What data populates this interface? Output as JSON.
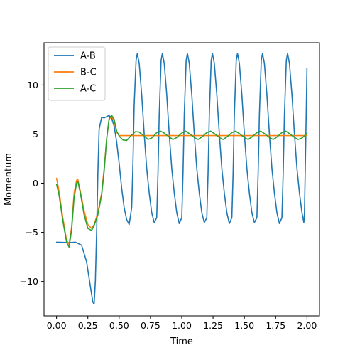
{
  "chart_data": {
    "type": "line",
    "xlabel": "Time",
    "ylabel": "Momentum",
    "xlim": [
      -0.1,
      2.1
    ],
    "ylim": [
      -13.5,
      14.3
    ],
    "xticks": [
      0.0,
      0.25,
      0.5,
      0.75,
      1.0,
      1.25,
      1.5,
      1.75,
      2.0
    ],
    "xtick_labels": [
      "0.00",
      "0.25",
      "0.50",
      "0.75",
      "1.00",
      "1.25",
      "1.50",
      "1.75",
      "2.00"
    ],
    "yticks": [
      -10,
      -5,
      0,
      5,
      10
    ],
    "ytick_labels": [
      "−10",
      "−5",
      "0",
      "5",
      "10"
    ],
    "grid": false,
    "legend_position": "top-left",
    "series": [
      {
        "name": "A-B",
        "color": "#1f77b4",
        "points": [
          [
            0.0,
            -6.0
          ],
          [
            0.05,
            -6.02
          ],
          [
            0.1,
            -6.05
          ],
          [
            0.15,
            -6.0
          ],
          [
            0.2,
            -6.3
          ],
          [
            0.24,
            -8.0
          ],
          [
            0.27,
            -10.5
          ],
          [
            0.29,
            -12.1
          ],
          [
            0.3,
            -12.3
          ],
          [
            0.31,
            -10.0
          ],
          [
            0.32,
            -5.0
          ],
          [
            0.33,
            1.0
          ],
          [
            0.34,
            5.5
          ],
          [
            0.36,
            6.7
          ],
          [
            0.38,
            6.65
          ],
          [
            0.42,
            6.9
          ],
          [
            0.44,
            6.6
          ],
          [
            0.46,
            5.8
          ],
          [
            0.48,
            4.2
          ],
          [
            0.5,
            2.0
          ],
          [
            0.52,
            -0.5
          ],
          [
            0.54,
            -2.5
          ],
          [
            0.56,
            -3.7
          ],
          [
            0.58,
            -4.2
          ],
          [
            0.6,
            -2.5
          ],
          [
            0.61,
            2.0
          ],
          [
            0.62,
            8.0
          ],
          [
            0.635,
            12.5
          ],
          [
            0.645,
            13.2
          ],
          [
            0.66,
            12.2
          ],
          [
            0.68,
            9.0
          ],
          [
            0.7,
            5.0
          ],
          [
            0.72,
            1.5
          ],
          [
            0.74,
            -1.0
          ],
          [
            0.76,
            -3.0
          ],
          [
            0.78,
            -4.0
          ],
          [
            0.8,
            -3.5
          ],
          [
            0.81,
            1.0
          ],
          [
            0.82,
            7.0
          ],
          [
            0.835,
            12.5
          ],
          [
            0.845,
            13.2
          ],
          [
            0.86,
            12.2
          ],
          [
            0.88,
            9.0
          ],
          [
            0.9,
            5.0
          ],
          [
            0.92,
            1.5
          ],
          [
            0.94,
            -1.0
          ],
          [
            0.96,
            -3.0
          ],
          [
            0.98,
            -4.1
          ],
          [
            1.0,
            -3.5
          ],
          [
            1.01,
            1.0
          ],
          [
            1.02,
            7.0
          ],
          [
            1.035,
            12.5
          ],
          [
            1.045,
            13.2
          ],
          [
            1.06,
            12.2
          ],
          [
            1.08,
            9.0
          ],
          [
            1.1,
            5.0
          ],
          [
            1.12,
            1.5
          ],
          [
            1.14,
            -1.0
          ],
          [
            1.16,
            -3.0
          ],
          [
            1.18,
            -4.0
          ],
          [
            1.2,
            -3.5
          ],
          [
            1.21,
            1.0
          ],
          [
            1.22,
            7.0
          ],
          [
            1.235,
            12.5
          ],
          [
            1.245,
            13.2
          ],
          [
            1.26,
            12.2
          ],
          [
            1.28,
            9.0
          ],
          [
            1.3,
            5.0
          ],
          [
            1.32,
            1.5
          ],
          [
            1.34,
            -1.0
          ],
          [
            1.36,
            -3.0
          ],
          [
            1.38,
            -4.1
          ],
          [
            1.4,
            -3.5
          ],
          [
            1.41,
            1.0
          ],
          [
            1.42,
            7.0
          ],
          [
            1.435,
            12.5
          ],
          [
            1.445,
            13.2
          ],
          [
            1.46,
            12.2
          ],
          [
            1.48,
            9.0
          ],
          [
            1.5,
            5.0
          ],
          [
            1.52,
            1.5
          ],
          [
            1.54,
            -1.0
          ],
          [
            1.56,
            -3.0
          ],
          [
            1.58,
            -4.0
          ],
          [
            1.6,
            -3.5
          ],
          [
            1.61,
            1.0
          ],
          [
            1.62,
            7.0
          ],
          [
            1.635,
            12.5
          ],
          [
            1.645,
            13.2
          ],
          [
            1.66,
            12.2
          ],
          [
            1.68,
            9.0
          ],
          [
            1.7,
            5.0
          ],
          [
            1.72,
            1.5
          ],
          [
            1.74,
            -1.0
          ],
          [
            1.76,
            -3.0
          ],
          [
            1.78,
            -4.1
          ],
          [
            1.8,
            -3.5
          ],
          [
            1.81,
            1.0
          ],
          [
            1.82,
            7.0
          ],
          [
            1.835,
            12.5
          ],
          [
            1.845,
            13.2
          ],
          [
            1.86,
            12.2
          ],
          [
            1.88,
            9.0
          ],
          [
            1.9,
            5.0
          ],
          [
            1.92,
            1.5
          ],
          [
            1.94,
            -1.0
          ],
          [
            1.96,
            -3.0
          ],
          [
            1.975,
            -4.0
          ],
          [
            1.98,
            -3.0
          ],
          [
            1.99,
            4.0
          ],
          [
            2.0,
            11.7
          ]
        ]
      },
      {
        "name": "B-C",
        "color": "#ff7f0e",
        "points": [
          [
            0.0,
            0.5
          ],
          [
            0.02,
            -0.8
          ],
          [
            0.05,
            -3.5
          ],
          [
            0.08,
            -5.8
          ],
          [
            0.1,
            -6.2
          ],
          [
            0.12,
            -4.5
          ],
          [
            0.14,
            -1.0
          ],
          [
            0.16,
            0.3
          ],
          [
            0.17,
            0.4
          ],
          [
            0.19,
            -0.8
          ],
          [
            0.22,
            -2.8
          ],
          [
            0.25,
            -4.2
          ],
          [
            0.28,
            -4.6
          ],
          [
            0.3,
            -4.2
          ],
          [
            0.33,
            -3.0
          ],
          [
            0.36,
            -1.0
          ],
          [
            0.38,
            1.5
          ],
          [
            0.4,
            4.5
          ],
          [
            0.42,
            6.5
          ],
          [
            0.44,
            6.8
          ],
          [
            0.46,
            6.3
          ],
          [
            0.48,
            5.2
          ],
          [
            0.5,
            4.85
          ],
          [
            0.55,
            4.85
          ],
          [
            1.0,
            4.85
          ],
          [
            1.5,
            4.85
          ],
          [
            2.0,
            4.85
          ]
        ]
      },
      {
        "name": "A-C",
        "color": "#2ca02c",
        "points": [
          [
            0.0,
            -0.1
          ],
          [
            0.02,
            -1.2
          ],
          [
            0.05,
            -3.8
          ],
          [
            0.08,
            -6.0
          ],
          [
            0.1,
            -6.5
          ],
          [
            0.12,
            -4.8
          ],
          [
            0.14,
            -1.5
          ],
          [
            0.16,
            0.0
          ],
          [
            0.17,
            0.2
          ],
          [
            0.19,
            -1.0
          ],
          [
            0.22,
            -3.2
          ],
          [
            0.25,
            -4.6
          ],
          [
            0.28,
            -4.8
          ],
          [
            0.3,
            -4.3
          ],
          [
            0.33,
            -3.2
          ],
          [
            0.36,
            -1.2
          ],
          [
            0.38,
            1.2
          ],
          [
            0.4,
            4.5
          ],
          [
            0.42,
            6.6
          ],
          [
            0.44,
            6.9
          ],
          [
            0.46,
            6.5
          ],
          [
            0.48,
            5.3
          ],
          [
            0.5,
            4.8
          ],
          [
            0.53,
            4.4
          ],
          [
            0.56,
            4.35
          ],
          [
            0.6,
            4.9
          ],
          [
            0.63,
            5.25
          ],
          [
            0.66,
            5.2
          ],
          [
            0.7,
            4.8
          ],
          [
            0.73,
            4.45
          ],
          [
            0.76,
            4.6
          ],
          [
            0.8,
            5.15
          ],
          [
            0.83,
            5.3
          ],
          [
            0.86,
            5.1
          ],
          [
            0.9,
            4.7
          ],
          [
            0.93,
            4.45
          ],
          [
            0.96,
            4.65
          ],
          [
            1.0,
            5.1
          ],
          [
            1.03,
            5.3
          ],
          [
            1.06,
            5.05
          ],
          [
            1.1,
            4.65
          ],
          [
            1.13,
            4.45
          ],
          [
            1.16,
            4.7
          ],
          [
            1.2,
            5.15
          ],
          [
            1.23,
            5.3
          ],
          [
            1.26,
            5.05
          ],
          [
            1.3,
            4.65
          ],
          [
            1.33,
            4.45
          ],
          [
            1.36,
            4.7
          ],
          [
            1.4,
            5.15
          ],
          [
            1.43,
            5.3
          ],
          [
            1.46,
            5.05
          ],
          [
            1.5,
            4.65
          ],
          [
            1.53,
            4.45
          ],
          [
            1.56,
            4.7
          ],
          [
            1.6,
            5.15
          ],
          [
            1.63,
            5.3
          ],
          [
            1.66,
            5.05
          ],
          [
            1.7,
            4.65
          ],
          [
            1.73,
            4.45
          ],
          [
            1.76,
            4.7
          ],
          [
            1.8,
            5.15
          ],
          [
            1.83,
            5.3
          ],
          [
            1.86,
            5.05
          ],
          [
            1.9,
            4.65
          ],
          [
            1.93,
            4.45
          ],
          [
            1.96,
            4.6
          ],
          [
            2.0,
            5.05
          ]
        ]
      }
    ]
  }
}
